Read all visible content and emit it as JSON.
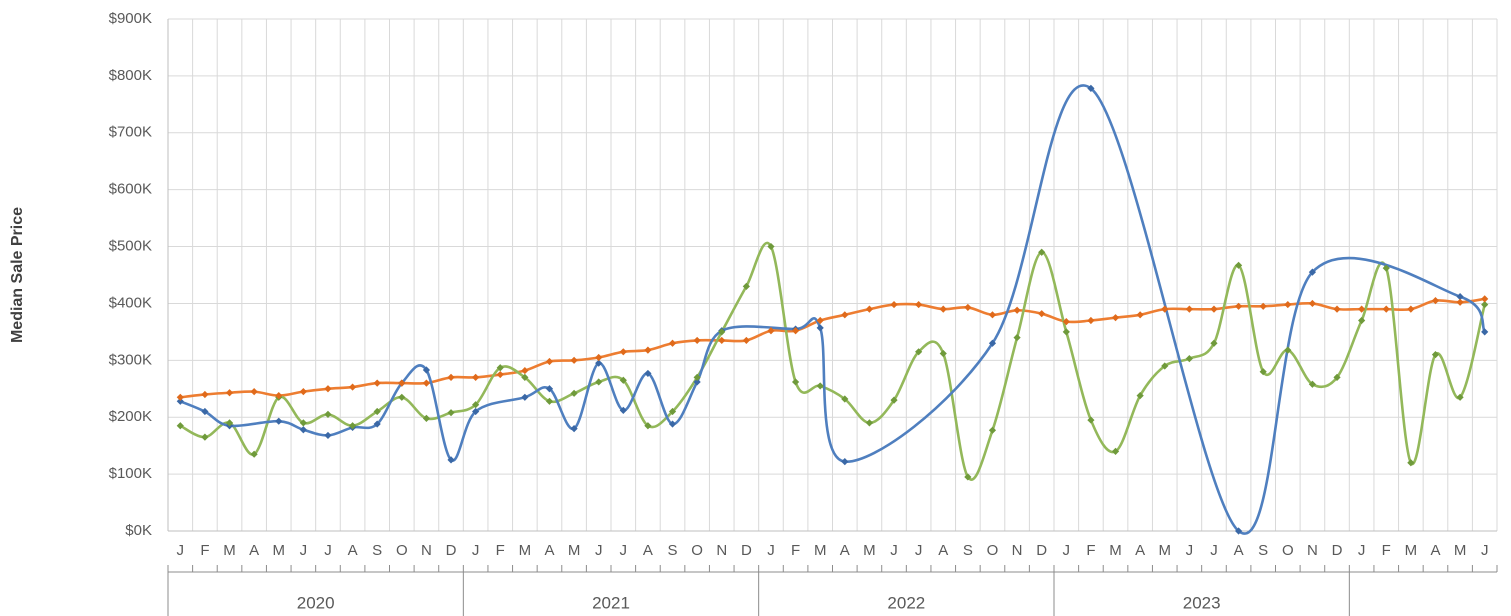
{
  "chart_data": {
    "type": "line",
    "y_title": "Median Sale Price",
    "categories": [
      "J",
      "F",
      "M",
      "A",
      "M",
      "J",
      "J",
      "A",
      "S",
      "O",
      "N",
      "D",
      "J",
      "F",
      "M",
      "A",
      "M",
      "J",
      "J",
      "A",
      "S",
      "O",
      "N",
      "D",
      "J",
      "F",
      "M",
      "A",
      "M",
      "J",
      "J",
      "A",
      "S",
      "O",
      "N",
      "D",
      "J",
      "F",
      "M",
      "A",
      "M",
      "J",
      "J",
      "A",
      "S",
      "O",
      "N",
      "D",
      "J",
      "F",
      "M",
      "A",
      "M",
      "J"
    ],
    "groups": [
      "2020",
      "2021",
      "2022",
      "2023",
      null
    ],
    "group_size": 12,
    "series": [
      {
        "color": "#4f7fbf",
        "marker_color": "#3a68a6",
        "connect_gaps": true,
        "values": [
          228,
          210,
          185,
          null,
          193,
          178,
          168,
          182,
          188,
          260,
          283,
          125,
          210,
          null,
          235,
          250,
          180,
          295,
          212,
          277,
          188,
          262,
          352,
          null,
          null,
          355,
          357,
          122,
          null,
          null,
          null,
          null,
          null,
          330,
          null,
          null,
          null,
          778,
          null,
          null,
          null,
          null,
          null,
          0,
          null,
          null,
          455,
          null,
          null,
          null,
          null,
          null,
          412,
          350
        ]
      },
      {
        "color": "#93b85a",
        "marker_color": "#6f9a3b",
        "connect_gaps": true,
        "values": [
          185,
          165,
          190,
          135,
          235,
          190,
          205,
          185,
          210,
          235,
          198,
          208,
          222,
          287,
          270,
          228,
          242,
          262,
          265,
          185,
          210,
          270,
          350,
          430,
          500,
          262,
          255,
          232,
          190,
          230,
          315,
          312,
          95,
          177,
          340,
          490,
          350,
          195,
          140,
          238,
          290,
          303,
          330,
          467,
          280,
          318,
          258,
          270,
          370,
          462,
          120,
          310,
          235,
          398
        ]
      },
      {
        "color": "#ed7d31",
        "marker_color": "#e06a1b",
        "connect_gaps": true,
        "values": [
          235,
          240,
          243,
          245,
          238,
          245,
          250,
          253,
          260,
          260,
          260,
          270,
          270,
          275,
          282,
          298,
          300,
          305,
          315,
          318,
          330,
          335,
          335,
          335,
          352,
          352,
          370,
          380,
          390,
          398,
          398,
          390,
          393,
          380,
          388,
          382,
          368,
          370,
          375,
          380,
          390,
          390,
          390,
          395,
          395,
          398,
          400,
          390,
          390,
          390,
          390,
          405,
          402,
          408
        ]
      }
    ],
    "ylim": [
      0,
      900
    ],
    "yticks": [
      {
        "value": 0,
        "label": "$0K"
      },
      {
        "value": 100,
        "label": "$100K"
      },
      {
        "value": 200,
        "label": "$200K"
      },
      {
        "value": 300,
        "label": "$300K"
      },
      {
        "value": 400,
        "label": "$400K"
      },
      {
        "value": 500,
        "label": "$500K"
      },
      {
        "value": 600,
        "label": "$600K"
      },
      {
        "value": 700,
        "label": "$700K"
      },
      {
        "value": 800,
        "label": "$800K"
      },
      {
        "value": 900,
        "label": "$900K"
      }
    ],
    "grid": true
  }
}
